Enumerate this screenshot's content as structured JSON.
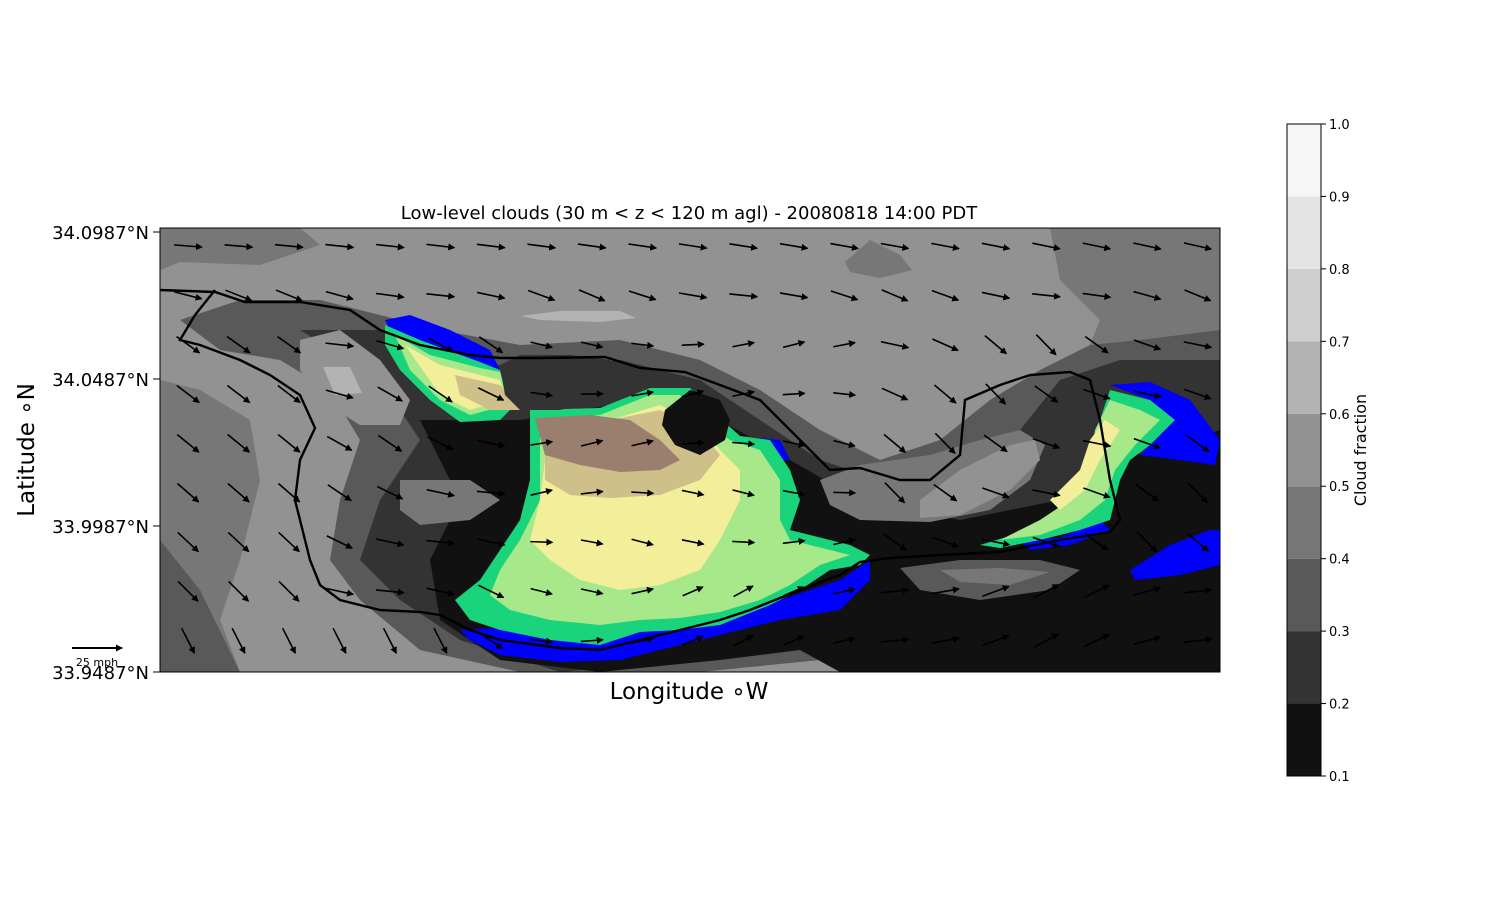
{
  "title": "Low-level clouds (30 m < z < 120 m agl) - 20080818 14:00 PDT",
  "xlabel": "Longitude $^\\circ$W",
  "xlabel_text": "Longitude ∘W",
  "ylabel_text": "Latitude ∘N",
  "lat_ticks": [
    "34.0987°N",
    "34.0487°N",
    "33.9987°N",
    "33.9487°N"
  ],
  "quiver_key_label": "25 mph",
  "colorbar": {
    "label": "Cloud fraction",
    "ticks": [
      "0.1",
      "0.2",
      "0.3",
      "0.4",
      "0.5",
      "0.6",
      "0.7",
      "0.8",
      "0.9",
      "1.0"
    ],
    "levels": [
      {
        "from": 0.1,
        "to": 0.2,
        "color": "#111111"
      },
      {
        "from": 0.2,
        "to": 0.3,
        "color": "#333333"
      },
      {
        "from": 0.3,
        "to": 0.4,
        "color": "#595959"
      },
      {
        "from": 0.4,
        "to": 0.5,
        "color": "#777777"
      },
      {
        "from": 0.5,
        "to": 0.6,
        "color": "#929292"
      },
      {
        "from": 0.6,
        "to": 0.7,
        "color": "#b3b3b3"
      },
      {
        "from": 0.7,
        "to": 0.8,
        "color": "#cfcfcf"
      },
      {
        "from": 0.8,
        "to": 0.9,
        "color": "#e4e4e4"
      },
      {
        "from": 0.9,
        "to": 1.0,
        "color": "#f6f6f6"
      }
    ]
  },
  "colors": {
    "precip_blue": "#0000ff",
    "precip_green": "#19d47a",
    "precip_lightgreen": "#a6e88a",
    "precip_yellow": "#f2ee9a",
    "precip_tan": "#cfc08a",
    "precip_brown": "#9a7f6e"
  }
}
